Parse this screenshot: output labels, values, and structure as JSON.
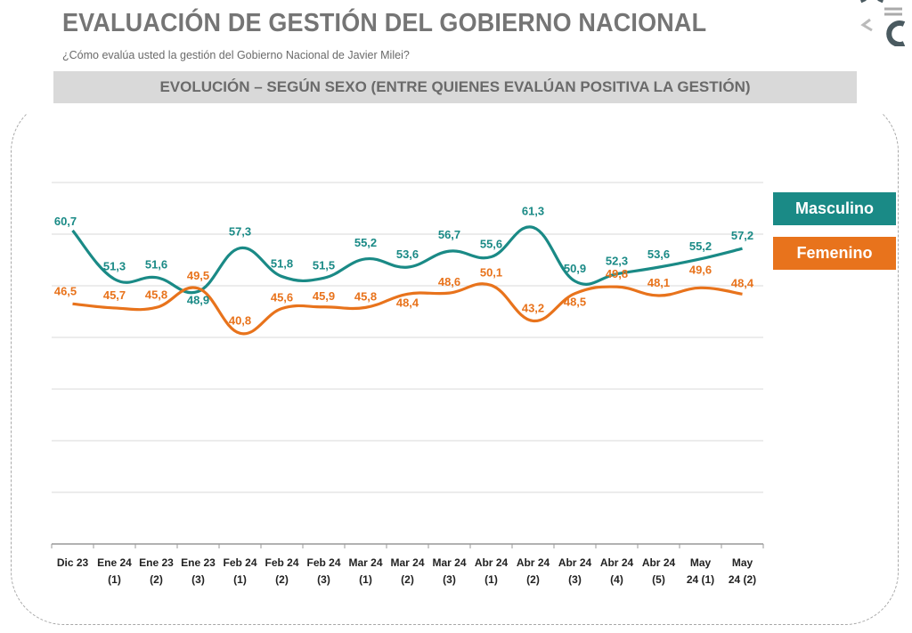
{
  "header": {
    "title": "EVALUACIÓN DE GESTIÓN DEL GOBIERNO NACIONAL",
    "subtitle": "¿Cómo evalúa usted la gestión del Gobierno Nacional de Javier Milei?",
    "banner": "EVOLUCIÓN – SEGÚN SEXO (ENTRE QUIENES EVALÚAN POSITIVA LA GESTIÓN)"
  },
  "colors": {
    "masculino": "#1a8a86",
    "femenino": "#e8731c",
    "grid": "#d9d9d9"
  },
  "chart_data": {
    "type": "line",
    "title": "EVOLUCIÓN – SEGÚN SEXO (ENTRE QUIENES EVALÚAN POSITIVA LA GESTIÓN)",
    "xlabel": "",
    "ylabel": "",
    "ylim": [
      0,
      70
    ],
    "grid": true,
    "legend_position": "right",
    "categories": [
      [
        "Dic 23",
        ""
      ],
      [
        "Ene 24",
        "(1)"
      ],
      [
        "Ene 23",
        "(2)"
      ],
      [
        "Ene 23",
        "(3)"
      ],
      [
        "Feb 24",
        "(1)"
      ],
      [
        "Feb 24",
        "(2)"
      ],
      [
        "Feb 24",
        "(3)"
      ],
      [
        "Mar 24",
        "(1)"
      ],
      [
        "Mar 24",
        "(2)"
      ],
      [
        "Mar 24",
        "(3)"
      ],
      [
        "Abr 24",
        "(1)"
      ],
      [
        "Abr 24",
        "(2)"
      ],
      [
        "Abr 24",
        "(3)"
      ],
      [
        "Abr 24",
        "(4)"
      ],
      [
        "Abr 24",
        "(5)"
      ],
      [
        "May",
        "24 (1)"
      ],
      [
        "May",
        "24 (2)"
      ]
    ],
    "series": [
      {
        "name": "Masculino",
        "labels": [
          "60,7",
          "51,3",
          "51,6",
          "48,9",
          "57,3",
          "51,8",
          "51,5",
          "55,2",
          "53,6",
          "56,7",
          "55,6",
          "61,3",
          "50,9",
          "52,3",
          "53,6",
          "55,2",
          "57,2"
        ],
        "values": [
          60.7,
          51.3,
          51.6,
          48.9,
          57.3,
          51.8,
          51.5,
          55.2,
          53.6,
          56.7,
          55.6,
          61.3,
          50.9,
          52.3,
          53.6,
          55.2,
          57.2
        ]
      },
      {
        "name": "Femenino",
        "labels": [
          "46,5",
          "45,7",
          "45,8",
          "49,5",
          "40,8",
          "45,6",
          "45,9",
          "45,8",
          "48,4",
          "48,6",
          "50,1",
          "43,2",
          "48,5",
          "49,8",
          "48,1",
          "49,6",
          "48,4"
        ],
        "values": [
          46.5,
          45.7,
          45.8,
          49.5,
          40.8,
          45.6,
          45.9,
          45.8,
          48.4,
          48.6,
          50.1,
          43.2,
          48.5,
          49.8,
          48.1,
          49.6,
          48.4
        ]
      }
    ]
  }
}
